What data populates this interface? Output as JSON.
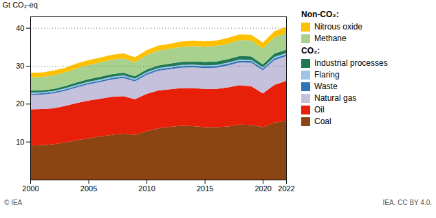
{
  "chart_data": {
    "type": "area",
    "stacked": true,
    "ylabel": "Gt CO₂-eq",
    "x": [
      2000,
      2001,
      2002,
      2003,
      2004,
      2005,
      2006,
      2007,
      2008,
      2009,
      2010,
      2011,
      2012,
      2013,
      2014,
      2015,
      2016,
      2017,
      2018,
      2019,
      2020,
      2021,
      2022
    ],
    "series": [
      {
        "name": "Coal",
        "group": "CO₂:",
        "color": "#8B4513",
        "values": [
          9.0,
          9.1,
          9.3,
          9.8,
          10.4,
          10.9,
          11.4,
          11.8,
          12.1,
          11.8,
          12.8,
          13.5,
          13.9,
          14.2,
          14.1,
          13.8,
          13.8,
          14.0,
          14.5,
          14.4,
          13.8,
          15.0,
          15.5
        ]
      },
      {
        "name": "Oil",
        "group": "CO₂:",
        "color": "#E8200A",
        "values": [
          9.5,
          9.5,
          9.5,
          9.6,
          9.8,
          9.9,
          9.9,
          10.0,
          9.9,
          9.4,
          9.8,
          10.0,
          9.9,
          9.9,
          10.0,
          10.1,
          10.1,
          10.3,
          10.4,
          10.2,
          8.9,
          10.0,
          10.5
        ]
      },
      {
        "name": "Natural gas",
        "group": "CO₂:",
        "color": "#C5C0DC",
        "values": [
          3.8,
          3.8,
          3.9,
          4.0,
          4.1,
          4.3,
          4.4,
          4.6,
          4.8,
          4.7,
          5.0,
          5.2,
          5.3,
          5.4,
          5.5,
          5.5,
          5.6,
          5.8,
          6.0,
          6.2,
          6.1,
          6.5,
          6.5
        ]
      },
      {
        "name": "Waste",
        "group": "CO₂:",
        "color": "#2E75B6",
        "values": [
          0.35,
          0.35,
          0.36,
          0.36,
          0.37,
          0.37,
          0.38,
          0.38,
          0.39,
          0.39,
          0.4,
          0.4,
          0.41,
          0.41,
          0.42,
          0.43,
          0.44,
          0.44,
          0.45,
          0.46,
          0.47,
          0.48,
          0.49
        ]
      },
      {
        "name": "Flaring",
        "group": "CO₂:",
        "color": "#9DC3E6",
        "values": [
          0.3,
          0.3,
          0.3,
          0.3,
          0.3,
          0.3,
          0.3,
          0.3,
          0.3,
          0.3,
          0.3,
          0.3,
          0.3,
          0.3,
          0.3,
          0.3,
          0.3,
          0.3,
          0.3,
          0.3,
          0.3,
          0.35,
          0.35
        ]
      },
      {
        "name": "Industrial processes",
        "group": "CO₂:",
        "color": "#1F7A54",
        "values": [
          0.5,
          0.5,
          0.55,
          0.6,
          0.65,
          0.7,
          0.7,
          0.7,
          0.7,
          0.65,
          0.7,
          0.7,
          0.75,
          0.8,
          0.85,
          0.9,
          0.9,
          0.9,
          0.9,
          0.9,
          0.8,
          0.9,
          0.9
        ]
      },
      {
        "name": "Methane",
        "group": "Non-CO₂:",
        "color": "#A9D18E",
        "values": [
          3.5,
          3.5,
          3.6,
          3.6,
          3.7,
          3.7,
          3.8,
          3.8,
          3.8,
          3.7,
          3.8,
          3.9,
          3.9,
          4.0,
          4.0,
          4.0,
          4.1,
          4.1,
          4.2,
          4.2,
          4.2,
          4.3,
          4.3
        ]
      },
      {
        "name": "Nitrous oxide",
        "group": "Non-CO₂:",
        "color": "#FFC000",
        "values": [
          1.2,
          1.2,
          1.2,
          1.2,
          1.3,
          1.3,
          1.3,
          1.3,
          1.3,
          1.3,
          1.3,
          1.3,
          1.3,
          1.4,
          1.4,
          1.4,
          1.4,
          1.5,
          1.5,
          1.5,
          1.5,
          1.6,
          1.7
        ]
      }
    ],
    "hlines": [
      30,
      40
    ],
    "line_style": "dotted",
    "xlim": [
      2000,
      2022
    ],
    "xticks": [
      2000,
      2005,
      2010,
      2015,
      2020,
      2022
    ],
    "ylim": [
      0,
      43
    ],
    "yticks": [
      10,
      20,
      30,
      40
    ],
    "annotations": [
      "© IEA",
      "IEA. CC BY 4.0."
    ]
  }
}
